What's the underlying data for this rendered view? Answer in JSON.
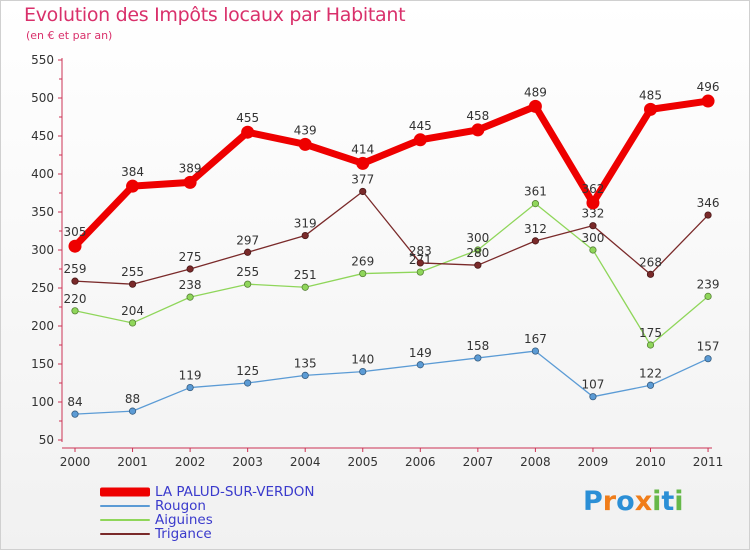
{
  "header": {
    "title": "Evolution des Impôts locaux par Habitant",
    "subtitle": "(en € et par an)"
  },
  "chart_data": {
    "type": "line",
    "title": "Evolution des Impôts locaux par Habitant",
    "subtitle": "(en € et par an)",
    "xlabel": "",
    "ylabel": "",
    "categories": [
      "2000",
      "2001",
      "2002",
      "2003",
      "2004",
      "2005",
      "2006",
      "2007",
      "2008",
      "2009",
      "2010",
      "2011"
    ],
    "ylim": [
      50,
      550
    ],
    "yticks": [
      50,
      100,
      150,
      200,
      250,
      300,
      350,
      400,
      450,
      500,
      550
    ],
    "grid": false,
    "legend_position": "bottom-left",
    "series": [
      {
        "name": "LA PALUD-SUR-VERDON",
        "color": "#ee0000",
        "values": [
          305,
          384,
          389,
          455,
          439,
          414,
          445,
          458,
          489,
          362,
          485,
          496
        ]
      },
      {
        "name": "Rougon",
        "color": "#5b9bd5",
        "values": [
          84,
          88,
          119,
          125,
          135,
          140,
          149,
          158,
          167,
          107,
          122,
          157
        ]
      },
      {
        "name": "Aiguines",
        "color": "#8fd65a",
        "values": [
          220,
          204,
          238,
          255,
          251,
          269,
          271,
          300,
          361,
          300,
          175,
          239
        ]
      },
      {
        "name": "Trigance",
        "color": "#7a2a2a",
        "values": [
          259,
          255,
          275,
          297,
          319,
          377,
          283,
          280,
          312,
          332,
          268,
          346
        ]
      }
    ]
  },
  "logo": {
    "letters": [
      "P",
      "r",
      "o",
      "x",
      "i",
      "t",
      "i"
    ],
    "colors": [
      "#2b8fd6",
      "#f07d1a",
      "#2b8fd6",
      "#f07d1a",
      "#66b84a",
      "#2b8fd6",
      "#66b84a"
    ]
  }
}
